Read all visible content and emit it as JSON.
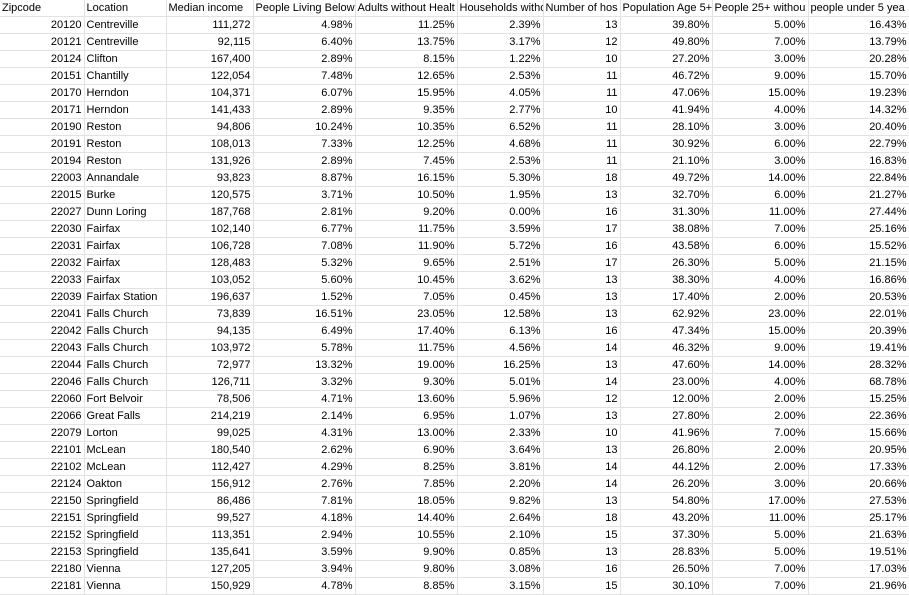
{
  "columns": [
    "Zipcode",
    "Location",
    "Median income",
    "People Living Below Pc",
    "Adults without Healt",
    "Households witho",
    "Number of hos",
    "Population Age 5+",
    "People 25+ withou",
    "people under 5 yea"
  ],
  "rows": [
    [
      "20120",
      "Centreville",
      "111,272",
      "4.98%",
      "11.25%",
      "2.39%",
      "13",
      "39.80%",
      "5.00%",
      "16.43%"
    ],
    [
      "20121",
      "Centreville",
      "92,115",
      "6.40%",
      "13.75%",
      "3.17%",
      "12",
      "49.80%",
      "7.00%",
      "13.79%"
    ],
    [
      "20124",
      "Clifton",
      "167,400",
      "2.89%",
      "8.15%",
      "1.22%",
      "10",
      "27.20%",
      "3.00%",
      "20.28%"
    ],
    [
      "20151",
      "Chantilly",
      "122,054",
      "7.48%",
      "12.65%",
      "2.53%",
      "11",
      "46.72%",
      "9.00%",
      "15.70%"
    ],
    [
      "20170",
      "Herndon",
      "104,371",
      "6.07%",
      "15.95%",
      "4.05%",
      "11",
      "47.06%",
      "15.00%",
      "19.23%"
    ],
    [
      "20171",
      "Herndon",
      "141,433",
      "2.89%",
      "9.35%",
      "2.77%",
      "10",
      "41.94%",
      "4.00%",
      "14.32%"
    ],
    [
      "20190",
      "Reston",
      "94,806",
      "10.24%",
      "10.35%",
      "6.52%",
      "11",
      "28.10%",
      "3.00%",
      "20.40%"
    ],
    [
      "20191",
      "Reston",
      "108,013",
      "7.33%",
      "12.25%",
      "4.68%",
      "11",
      "30.92%",
      "6.00%",
      "22.79%"
    ],
    [
      "20194",
      "Reston",
      "131,926",
      "2.89%",
      "7.45%",
      "2.53%",
      "11",
      "21.10%",
      "3.00%",
      "16.83%"
    ],
    [
      "22003",
      "Annandale",
      "93,823",
      "8.87%",
      "16.15%",
      "5.30%",
      "18",
      "49.72%",
      "14.00%",
      "22.84%"
    ],
    [
      "22015",
      "Burke",
      "120,575",
      "3.71%",
      "10.50%",
      "1.95%",
      "13",
      "32.70%",
      "6.00%",
      "21.27%"
    ],
    [
      "22027",
      "Dunn Loring",
      "187,768",
      "2.81%",
      "9.20%",
      "0.00%",
      "16",
      "31.30%",
      "11.00%",
      "27.44%"
    ],
    [
      "22030",
      "Fairfax",
      "102,140",
      "6.77%",
      "11.75%",
      "3.59%",
      "17",
      "38.08%",
      "7.00%",
      "25.16%"
    ],
    [
      "22031",
      "Fairfax",
      "106,728",
      "7.08%",
      "11.90%",
      "5.72%",
      "16",
      "43.58%",
      "6.00%",
      "15.52%"
    ],
    [
      "22032",
      "Fairfax",
      "128,483",
      "5.32%",
      "9.65%",
      "2.51%",
      "17",
      "26.30%",
      "5.00%",
      "21.15%"
    ],
    [
      "22033",
      "Fairfax",
      "103,052",
      "5.60%",
      "10.45%",
      "3.62%",
      "13",
      "38.30%",
      "4.00%",
      "16.86%"
    ],
    [
      "22039",
      "Fairfax Station",
      "196,637",
      "1.52%",
      "7.05%",
      "0.45%",
      "13",
      "17.40%",
      "2.00%",
      "20.53%"
    ],
    [
      "22041",
      "Falls Church",
      "73,839",
      "16.51%",
      "23.05%",
      "12.58%",
      "13",
      "62.92%",
      "23.00%",
      "22.01%"
    ],
    [
      "22042",
      "Falls Church",
      "94,135",
      "6.49%",
      "17.40%",
      "6.13%",
      "16",
      "47.34%",
      "15.00%",
      "20.39%"
    ],
    [
      "22043",
      "Falls Church",
      "103,972",
      "5.78%",
      "11.75%",
      "4.56%",
      "14",
      "46.32%",
      "9.00%",
      "19.41%"
    ],
    [
      "22044",
      "Falls Church",
      "72,977",
      "13.32%",
      "19.00%",
      "16.25%",
      "13",
      "47.60%",
      "14.00%",
      "28.32%"
    ],
    [
      "22046",
      "Falls Church",
      "126,711",
      "3.32%",
      "9.30%",
      "5.01%",
      "14",
      "23.00%",
      "4.00%",
      "68.78%"
    ],
    [
      "22060",
      "Fort Belvoir",
      "78,506",
      "4.71%",
      "13.60%",
      "5.96%",
      "12",
      "12.00%",
      "2.00%",
      "15.25%"
    ],
    [
      "22066",
      "Great Falls",
      "214,219",
      "2.14%",
      "6.95%",
      "1.07%",
      "13",
      "27.80%",
      "2.00%",
      "22.36%"
    ],
    [
      "22079",
      "Lorton",
      "99,025",
      "4.31%",
      "13.00%",
      "2.33%",
      "10",
      "41.96%",
      "7.00%",
      "15.66%"
    ],
    [
      "22101",
      "McLean",
      "180,540",
      "2.62%",
      "6.90%",
      "3.64%",
      "13",
      "26.80%",
      "2.00%",
      "20.95%"
    ],
    [
      "22102",
      "McLean",
      "112,427",
      "4.29%",
      "8.25%",
      "3.81%",
      "14",
      "44.12%",
      "2.00%",
      "17.33%"
    ],
    [
      "22124",
      "Oakton",
      "156,912",
      "2.76%",
      "7.85%",
      "2.20%",
      "14",
      "26.20%",
      "3.00%",
      "20.66%"
    ],
    [
      "22150",
      "Springfield",
      "86,486",
      "7.81%",
      "18.05%",
      "9.82%",
      "13",
      "54.80%",
      "17.00%",
      "27.53%"
    ],
    [
      "22151",
      "Springfield",
      "99,527",
      "4.18%",
      "14.40%",
      "2.64%",
      "18",
      "43.20%",
      "11.00%",
      "25.17%"
    ],
    [
      "22152",
      "Springfield",
      "113,351",
      "2.94%",
      "10.55%",
      "2.10%",
      "15",
      "37.30%",
      "5.00%",
      "21.63%"
    ],
    [
      "22153",
      "Springfield",
      "135,641",
      "3.59%",
      "9.90%",
      "0.85%",
      "13",
      "28.83%",
      "5.00%",
      "19.51%"
    ],
    [
      "22180",
      "Vienna",
      "127,205",
      "3.94%",
      "9.80%",
      "3.08%",
      "16",
      "26.50%",
      "7.00%",
      "17.03%"
    ],
    [
      "22181",
      "Vienna",
      "150,929",
      "4.78%",
      "8.85%",
      "3.15%",
      "15",
      "30.10%",
      "7.00%",
      "21.96%"
    ]
  ]
}
